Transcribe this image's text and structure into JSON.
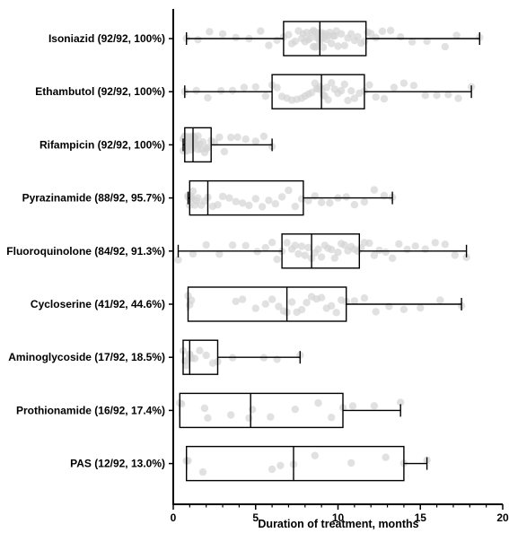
{
  "chart_data": {
    "type": "box",
    "orientation": "horizontal",
    "title": "",
    "xlabel": "Duration of treatment, months",
    "ylabel": "",
    "xlim": [
      0,
      20
    ],
    "xticks": [
      0,
      5,
      10,
      15,
      20
    ],
    "grid": false,
    "legend": "none",
    "categories": [
      "Isoniazid (92/92, 100%)",
      "Ethambutol (92/92, 100%)",
      "Rifampicin (92/92, 100%)",
      "Pyrazinamide (88/92, 95.7%)",
      "Fluoroquinolone (84/92, 91.3%)",
      "Cycloserine (41/92, 44.6%)",
      "Aminoglycoside (17/92, 18.5%)",
      "Prothionamide (16/92, 17.4%)",
      "PAS (12/92, 13.0%)"
    ],
    "boxes": [
      {
        "min": 0.8,
        "q1": 6.7,
        "median": 8.9,
        "q3": 11.7,
        "max": 18.6
      },
      {
        "min": 0.7,
        "q1": 6.0,
        "median": 9.0,
        "q3": 11.6,
        "max": 18.1
      },
      {
        "min": 0.6,
        "q1": 0.7,
        "median": 1.2,
        "q3": 2.3,
        "max": 6.0
      },
      {
        "min": 0.9,
        "q1": 1.0,
        "median": 2.1,
        "q3": 7.9,
        "max": 13.3
      },
      {
        "min": 0.3,
        "q1": 6.6,
        "median": 8.4,
        "q3": 11.3,
        "max": 17.8
      },
      {
        "min": 0.9,
        "q1": 0.9,
        "median": 6.9,
        "q3": 10.5,
        "max": 17.5
      },
      {
        "min": 0.6,
        "q1": 0.6,
        "median": 1.0,
        "q3": 2.7,
        "max": 7.7
      },
      {
        "min": 0.4,
        "q1": 0.4,
        "median": 4.7,
        "q3": 10.3,
        "max": 13.8
      },
      {
        "min": 0.8,
        "q1": 0.8,
        "median": 7.3,
        "q3": 14.0,
        "max": 15.4
      }
    ],
    "points": [
      [
        0.8,
        1.5,
        2.2,
        3.0,
        3.8,
        4.6,
        5.3,
        5.8,
        6.3,
        6.7,
        7.0,
        7.2,
        7.4,
        7.6,
        7.8,
        7.9,
        8.0,
        8.1,
        8.2,
        8.3,
        8.4,
        8.5,
        8.5,
        8.6,
        8.6,
        8.7,
        8.7,
        8.8,
        8.8,
        8.9,
        8.9,
        9.0,
        9.0,
        9.1,
        9.1,
        9.2,
        9.3,
        9.4,
        9.5,
        9.6,
        9.7,
        9.8,
        9.9,
        10.0,
        10.2,
        10.4,
        10.6,
        10.8,
        11.0,
        11.2,
        11.4,
        11.6,
        11.8,
        12.0,
        12.3,
        12.7,
        13.2,
        13.8,
        14.5,
        15.4,
        16.5,
        17.2,
        18.6
      ],
      [
        0.7,
        1.4,
        2.1,
        2.9,
        3.6,
        4.3,
        5.0,
        5.6,
        6.0,
        6.3,
        6.6,
        6.9,
        7.2,
        7.5,
        7.8,
        8.0,
        8.2,
        8.4,
        8.6,
        8.7,
        8.8,
        8.9,
        9.0,
        9.1,
        9.2,
        9.3,
        9.4,
        9.6,
        9.8,
        10.0,
        10.2,
        10.4,
        10.6,
        10.8,
        11.0,
        11.3,
        11.6,
        11.9,
        12.3,
        12.8,
        13.4,
        14.0,
        14.6,
        15.3,
        16.0,
        16.7,
        17.3,
        18.1
      ],
      [
        0.6,
        0.6,
        0.7,
        0.7,
        0.7,
        0.8,
        0.8,
        0.8,
        0.9,
        0.9,
        0.9,
        1.0,
        1.0,
        1.0,
        1.0,
        1.1,
        1.1,
        1.1,
        1.2,
        1.2,
        1.2,
        1.2,
        1.3,
        1.3,
        1.3,
        1.4,
        1.4,
        1.5,
        1.5,
        1.6,
        1.7,
        1.8,
        1.9,
        2.0,
        2.1,
        2.3,
        2.5,
        2.8,
        3.1,
        3.5,
        3.9,
        4.4,
        5.0,
        5.5,
        6.0
      ],
      [
        0.9,
        0.9,
        1.0,
        1.0,
        1.1,
        1.1,
        1.2,
        1.3,
        1.4,
        1.5,
        1.7,
        1.9,
        2.1,
        2.4,
        2.7,
        3.0,
        3.4,
        3.8,
        4.2,
        4.6,
        5.0,
        5.4,
        5.8,
        6.2,
        6.6,
        7.0,
        7.4,
        7.8,
        8.2,
        8.6,
        9.0,
        9.5,
        10.0,
        10.5,
        11.0,
        11.6,
        12.2,
        12.8,
        13.3
      ],
      [
        0.3,
        1.2,
        2.0,
        2.8,
        3.6,
        4.4,
        5.1,
        5.6,
        6.0,
        6.3,
        6.6,
        6.9,
        7.2,
        7.4,
        7.6,
        7.8,
        8.0,
        8.2,
        8.4,
        8.6,
        8.8,
        9.0,
        9.2,
        9.4,
        9.6,
        9.8,
        10.0,
        10.2,
        10.4,
        10.6,
        10.8,
        11.0,
        11.2,
        11.4,
        11.6,
        11.9,
        12.2,
        12.5,
        12.9,
        13.3,
        13.7,
        14.2,
        14.7,
        15.3,
        15.9,
        16.5,
        17.1,
        17.8
      ],
      [
        0.9,
        1.0,
        1.1,
        3.8,
        4.2,
        5.0,
        5.6,
        6.0,
        6.4,
        6.7,
        6.9,
        7.2,
        7.5,
        7.8,
        8.1,
        8.4,
        8.7,
        9.0,
        9.3,
        9.6,
        9.9,
        10.2,
        10.5,
        11.0,
        11.6,
        12.3,
        13.1,
        14.0,
        15.0,
        16.2,
        17.5
      ],
      [
        0.6,
        0.7,
        0.8,
        0.9,
        1.0,
        1.0,
        1.1,
        1.3,
        1.6,
        2.0,
        2.4,
        2.7,
        3.6,
        5.5,
        6.3,
        7.7
      ],
      [
        0.4,
        0.5,
        1.9,
        2.1,
        3.5,
        4.6,
        4.8,
        5.9,
        7.4,
        8.8,
        9.6,
        10.3,
        10.9,
        12.2,
        13.8
      ],
      [
        0.8,
        0.9,
        1.8,
        6.0,
        6.5,
        7.3,
        8.6,
        10.8,
        12.9,
        14.0,
        15.4
      ]
    ]
  }
}
